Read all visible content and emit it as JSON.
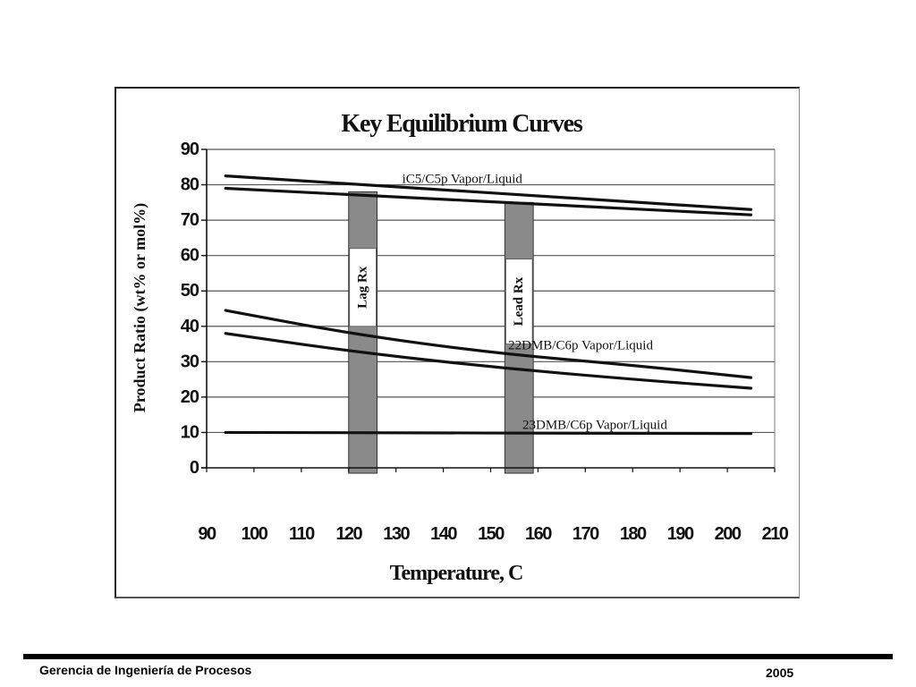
{
  "chart_data": {
    "type": "line",
    "title": "Key Equilibrium Curves",
    "xlabel": "Temperature, C",
    "ylabel": "Product Ratio (wt% or mol%)",
    "xlim": [
      90,
      210
    ],
    "ylim": [
      0,
      90
    ],
    "xticks": [
      90,
      100,
      110,
      120,
      130,
      140,
      150,
      160,
      170,
      180,
      190,
      200,
      210
    ],
    "yticks": [
      0,
      10,
      20,
      30,
      40,
      50,
      60,
      70,
      80,
      90
    ],
    "grid": "horizontal",
    "series": [
      {
        "name": "iC5/C5p Vapor/Liquid",
        "x": [
          94,
          205
        ],
        "y": [
          82.5,
          73
        ]
      },
      {
        "name": "",
        "x": [
          94,
          205
        ],
        "y": [
          79,
          71.5
        ]
      },
      {
        "name": "22DMB/C6p Vapor/Liquid",
        "x": [
          94,
          120,
          150,
          180,
          205
        ],
        "y": [
          44.5,
          38,
          32.5,
          29,
          25.5
        ]
      },
      {
        "name": "",
        "x": [
          94,
          120,
          150,
          180,
          205
        ],
        "y": [
          38,
          33,
          28.5,
          25,
          22.5
        ]
      },
      {
        "name": "23DMB/C6p Vapor/Liquid",
        "x": [
          94,
          205
        ],
        "y": [
          10,
          9.7
        ]
      }
    ],
    "bands": [
      {
        "label": "Lag Rx",
        "x0": 120,
        "x1": 126,
        "y0": 0,
        "y1": 78,
        "label_y0": 40,
        "label_y1": 62
      },
      {
        "label": "Lead Rx",
        "x0": 153,
        "x1": 159,
        "y0": 0,
        "y1": 75,
        "label_y0": 35,
        "label_y1": 59
      }
    ],
    "annotations": [
      {
        "text": "iC5/C5p Vapor/Liquid",
        "x": 144,
        "y": 80.5
      },
      {
        "text": "22DMB/C6p Vapor/Liquid",
        "x": 169,
        "y": 33.5
      },
      {
        "text": "23DMB/C6p Vapor/Liquid",
        "x": 172,
        "y": 11
      }
    ]
  },
  "footer": {
    "left": "Gerencia de Ingeniería de Procesos",
    "right": "2005"
  }
}
